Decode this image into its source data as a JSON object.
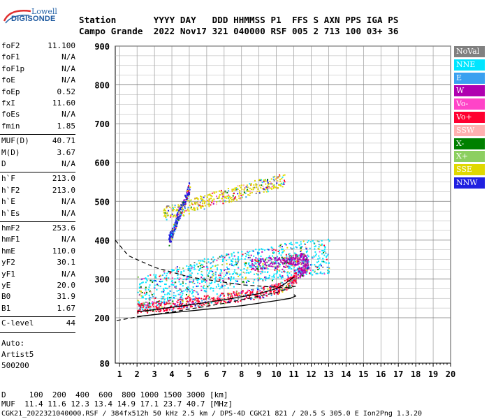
{
  "logo": {
    "line1": "Lowell",
    "line2": "DIGISONDE"
  },
  "header": {
    "row1": "Station       YYYY DAY   DDD HHMMSS P1  FFS S AXN PPS IGA PS",
    "row2": "Campo Grande  2022 Nov17 321 040000 RSF 005 2 713 100 03+ 36"
  },
  "params": [
    {
      "name": "foF2",
      "value": "11.100"
    },
    {
      "name": "foF1",
      "value": "N/A"
    },
    {
      "name": "foF1p",
      "value": "N/A"
    },
    {
      "name": "foE",
      "value": "N/A"
    },
    {
      "name": "foEp",
      "value": "0.52"
    },
    {
      "name": "fxI",
      "value": "11.60"
    },
    {
      "name": "foEs",
      "value": "N/A"
    },
    {
      "name": "fmin",
      "value": "1.85"
    },
    {
      "name": "MUF(D)",
      "value": "40.71"
    },
    {
      "name": "M(D)",
      "value": "3.67"
    },
    {
      "name": "D",
      "value": "N/A"
    },
    {
      "name": "h`F",
      "value": "213.0"
    },
    {
      "name": "h`F2",
      "value": "213.0"
    },
    {
      "name": "h`E",
      "value": "N/A"
    },
    {
      "name": "h`Es",
      "value": "N/A"
    },
    {
      "name": "hmF2",
      "value": "253.6"
    },
    {
      "name": "hmF1",
      "value": "N/A"
    },
    {
      "name": "hmE",
      "value": "110.0"
    },
    {
      "name": "yF2",
      "value": "30.1"
    },
    {
      "name": "yF1",
      "value": "N/A"
    },
    {
      "name": "yE",
      "value": "20.0"
    },
    {
      "name": "B0",
      "value": "31.9"
    },
    {
      "name": "B1",
      "value": "1.67"
    },
    {
      "name": "C-level",
      "value": "44"
    }
  ],
  "auto": {
    "line1": "Auto:",
    "line2": "Artist5",
    "line3": "500200"
  },
  "bottom": {
    "d_row": "D     100  200  400  600  800 1000 1500 3000 [km]",
    "muf_row": "MUF  11.4 11.6 12.3 13.4 14.9 17.1 23.7 40.7 [MHz]",
    "file_row": "CGK21_2022321040000.RSF / 384fx512h 50 kHz 2.5 km / DPS-4D CGK21 821 / 20.5 S 305.0 E Ion2Png 1.3.20"
  },
  "legend": [
    {
      "name": "NoVal",
      "color": "#808080"
    },
    {
      "name": "NNE",
      "color": "#00e5ff"
    },
    {
      "name": "E",
      "color": "#3aa0f0"
    },
    {
      "name": "W",
      "color": "#b000b0"
    },
    {
      "name": "Vo-",
      "color": "#ff44c8"
    },
    {
      "name": "Vo+",
      "color": "#ff0030"
    },
    {
      "name": "SSW",
      "color": "#ffb0b0"
    },
    {
      "name": "X-",
      "color": "#008000"
    },
    {
      "name": "X+",
      "color": "#8ccf60"
    },
    {
      "name": "SSE",
      "color": "#e0d800"
    },
    {
      "name": "NNW",
      "color": "#2020e0"
    }
  ],
  "chart_data": {
    "type": "scatter",
    "x_ticks": [
      "1",
      "2",
      "3",
      "4",
      "5",
      "6",
      "7",
      "8",
      "9",
      "10",
      "11",
      "12",
      "13",
      "14",
      "15",
      "16",
      "17",
      "18",
      "19",
      "20"
    ],
    "y_ticks": [
      "80",
      "200",
      "300",
      "400",
      "500",
      "600",
      "700",
      "800",
      "900"
    ],
    "xlim": [
      0.75,
      20
    ],
    "ylim": [
      80,
      900
    ],
    "grid": true,
    "legend_position": "right",
    "series": [
      {
        "name": "NNE",
        "mode": "E",
        "points": [
          [
            2.0,
            262
          ],
          [
            3.0,
            270
          ],
          [
            4.0,
            285
          ],
          [
            5.0,
            298
          ],
          [
            6.0,
            312
          ],
          [
            7.0,
            322
          ],
          [
            8.0,
            328
          ],
          [
            9.0,
            335
          ],
          [
            10.0,
            345
          ],
          [
            11.0,
            352
          ],
          [
            12.0,
            357
          ],
          [
            13.0,
            360
          ]
        ]
      },
      {
        "name": "W",
        "mode": "W",
        "points": [
          [
            8.5,
            340
          ],
          [
            9.5,
            342
          ],
          [
            10.5,
            345
          ],
          [
            11.0,
            350
          ],
          [
            11.5,
            355
          ],
          [
            11.8,
            340
          ],
          [
            11.5,
            320
          ],
          [
            11.0,
            310
          ]
        ]
      },
      {
        "name": "Vo+",
        "mode": "O",
        "points": [
          [
            2.0,
            225
          ],
          [
            3.0,
            230
          ],
          [
            4.0,
            235
          ],
          [
            5.0,
            240
          ],
          [
            6.0,
            245
          ],
          [
            7.0,
            252
          ],
          [
            8.0,
            258
          ],
          [
            9.0,
            265
          ],
          [
            10.0,
            275
          ],
          [
            10.7,
            290
          ],
          [
            11.1,
            305
          ]
        ]
      },
      {
        "name": "SSE",
        "mode": "O",
        "points": [
          [
            3.5,
            470
          ],
          [
            4.5,
            480
          ],
          [
            5.5,
            495
          ],
          [
            6.5,
            510
          ],
          [
            7.5,
            520
          ],
          [
            8.5,
            535
          ],
          [
            9.5,
            545
          ],
          [
            10.5,
            560
          ]
        ]
      },
      {
        "name": "NNW",
        "mode": "Fmode",
        "points": [
          [
            3.8,
            400
          ],
          [
            4.0,
            420
          ],
          [
            4.3,
            460
          ],
          [
            4.7,
            500
          ],
          [
            5.0,
            540
          ]
        ]
      }
    ],
    "traces": [
      {
        "name": "ordinary",
        "points": [
          [
            2.0,
            215
          ],
          [
            3.0,
            221
          ],
          [
            5.0,
            233
          ],
          [
            7.0,
            246
          ],
          [
            9.0,
            262
          ],
          [
            10.0,
            275
          ],
          [
            10.5,
            288
          ],
          [
            11.0,
            305
          ]
        ]
      },
      {
        "name": "extraordinary",
        "points": [
          [
            2.0,
            203
          ],
          [
            4.0,
            213
          ],
          [
            6.0,
            222
          ],
          [
            8.0,
            231
          ],
          [
            10.0,
            244
          ],
          [
            10.8,
            250
          ],
          [
            11.1,
            256
          ],
          [
            11.0,
            260
          ]
        ]
      },
      {
        "name": "profile",
        "dashed": true,
        "points": [
          [
            0.75,
            400
          ],
          [
            1.5,
            360
          ],
          [
            3.0,
            330
          ],
          [
            5.0,
            305
          ],
          [
            8.0,
            285
          ],
          [
            9.5,
            280
          ],
          [
            10.5,
            278
          ],
          [
            11.1,
            281
          ],
          [
            10.0,
            265
          ],
          [
            7.0,
            237
          ],
          [
            4.0,
            215
          ],
          [
            2.0,
            202
          ],
          [
            0.75,
            192
          ]
        ]
      }
    ]
  }
}
